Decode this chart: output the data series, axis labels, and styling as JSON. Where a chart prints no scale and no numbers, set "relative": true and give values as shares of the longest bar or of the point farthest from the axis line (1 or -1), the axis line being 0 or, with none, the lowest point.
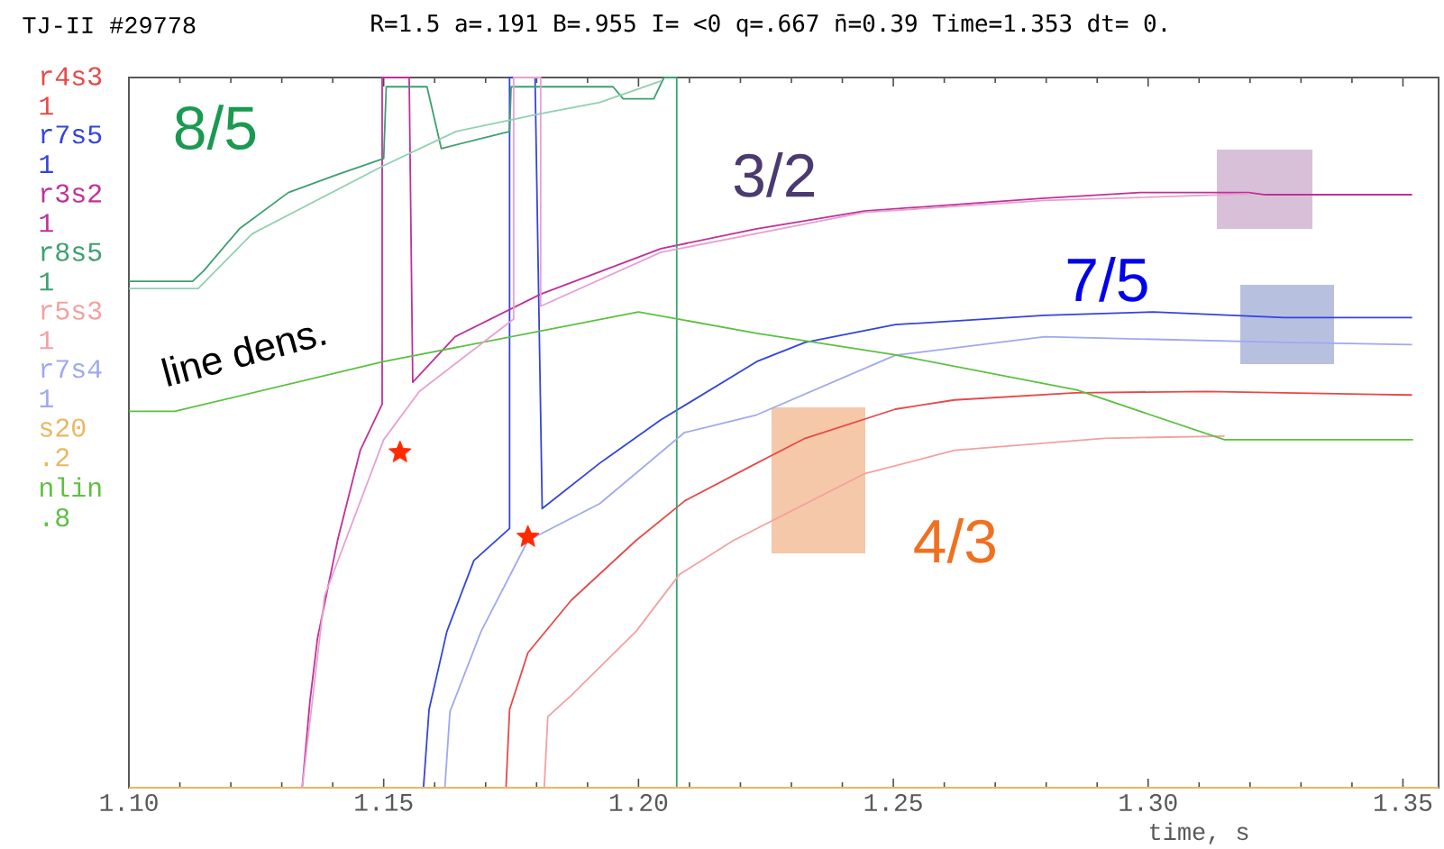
{
  "chart_data": {
    "type": "line",
    "title": "TJ-II #29778",
    "subtitle": "R=1.5  a=.191 B=.955 I= <0  q=.667 n̄=0.39 Time=1.353 dt= 0.",
    "xlabel": "time, s",
    "relative": true,
    "legend": "left",
    "tick_labels": "x",
    "xlim": [
      1.1,
      1.357
    ],
    "xticks": [
      {
        "value": 1.1,
        "label": "1.10"
      },
      {
        "value": 1.15,
        "label": "1.15"
      },
      {
        "value": 1.2,
        "label": "1.20"
      },
      {
        "value": 1.25,
        "label": "1.25"
      },
      {
        "value": 1.3,
        "label": "1.30"
      },
      {
        "value": 1.35,
        "label": "1.35"
      }
    ],
    "annotations": [
      "8/5",
      "3/2",
      "7/5",
      "4/3",
      "line dens."
    ],
    "series": [
      {
        "name": "r4s3 1",
        "color": "#e84848",
        "x": [
          1.174,
          1.1747,
          1.1783,
          1.1868,
          1.1995,
          1.2091,
          1.2232,
          1.2327,
          1.2504,
          1.262,
          1.2857,
          1.3115,
          1.3267,
          1.3518
        ],
        "values": [
          0,
          0.11,
          0.19,
          0.264,
          0.348,
          0.404,
          0.457,
          0.492,
          0.533,
          0.546,
          0.556,
          0.558,
          0.556,
          0.553
        ]
      },
      {
        "name": "r7s5 1",
        "color": "#3344dd",
        "x": [
          1.1578,
          1.1589,
          1.1624,
          1.1677,
          1.1747,
          1.1747,
          1.1797,
          1.1811,
          1.1924,
          1.2044,
          1.2232,
          1.2327,
          1.2504,
          1.2797,
          1.301,
          1.3267,
          1.3518
        ],
        "values": [
          0,
          0.11,
          0.22,
          0.32,
          0.365,
          1.0,
          1.0,
          0.393,
          0.457,
          0.518,
          0.6,
          0.627,
          0.652,
          0.665,
          0.67,
          0.662,
          0.662
        ]
      },
      {
        "name": "r3s2 1",
        "color": "#c0309a",
        "x": [
          1.134,
          1.1355,
          1.137,
          1.141,
          1.1454,
          1.1497,
          1.1497,
          1.155,
          1.1557,
          1.164,
          1.1808,
          1.2044,
          1.2232,
          1.2443,
          1.2797,
          1.2984,
          1.3197,
          1.323,
          1.3518
        ],
        "values": [
          0,
          0.12,
          0.21,
          0.35,
          0.475,
          0.54,
          1.0,
          1.0,
          0.571,
          0.635,
          0.695,
          0.759,
          0.787,
          0.812,
          0.83,
          0.838,
          0.838,
          0.835,
          0.835
        ]
      },
      {
        "name": "r8s5 1",
        "color": "#3ca070",
        "x": [
          1.1,
          1.1125,
          1.1147,
          1.1217,
          1.1313,
          1.1408,
          1.15,
          1.1505,
          1.1585,
          1.1613,
          1.1747,
          1.175,
          1.195,
          1.197,
          1.203,
          1.205,
          1.2075,
          1.2075
        ],
        "values": [
          0.713,
          0.713,
          0.728,
          0.787,
          0.838,
          0.863,
          0.886,
          0.987,
          0.987,
          0.9,
          0.924,
          0.987,
          0.987,
          0.97,
          0.97,
          1.0,
          1.0,
          0
        ]
      },
      {
        "name": "r5s3 1",
        "color": "#f4a0a0",
        "x": [
          1.1815,
          1.1822,
          1.1868,
          1.1995,
          1.208,
          1.2186,
          1.2443,
          1.262,
          1.2914,
          1.315
        ],
        "values": [
          0,
          0.1,
          0.13,
          0.22,
          0.3,
          0.348,
          0.442,
          0.475,
          0.492,
          0.495
        ]
      },
      {
        "name": "r7s4 1",
        "color": "#a0a8f0",
        "x": [
          1.162,
          1.163,
          1.1691,
          1.1783,
          1.1924,
          1.209,
          1.2232,
          1.2504,
          1.2797,
          1.3267,
          1.3518
        ],
        "values": [
          0,
          0.107,
          0.22,
          0.348,
          0.4,
          0.5,
          0.525,
          0.609,
          0.635,
          0.627,
          0.624
        ]
      },
      {
        "name": "s20 .2",
        "color": "#e8b860",
        "x": [
          1.1,
          1.357
        ],
        "values": [
          0,
          0
        ]
      },
      {
        "name": "nlin .8",
        "color": "#5cc040",
        "x": [
          1.1,
          1.109,
          1.15,
          1.2,
          1.223,
          1.25,
          1.286,
          1.315,
          1.352
        ],
        "values": [
          0.53,
          0.53,
          0.6,
          0.67,
          0.64,
          0.61,
          0.56,
          0.49,
          0.49
        ]
      },
      {
        "color": "#e8a0d0",
        "x": [
          1.134,
          1.1384,
          1.15,
          1.157,
          1.1755,
          1.1755,
          1.1808,
          1.1808,
          1.2044,
          1.2443,
          1.2797,
          1.32
        ],
        "values": [
          0,
          0.27,
          0.49,
          0.558,
          0.66,
          1.0,
          1.0,
          0.678,
          0.754,
          0.81,
          0.827,
          0.836
        ]
      },
      {
        "color": "#90d0b0",
        "x": [
          1.1,
          1.1136,
          1.1242,
          1.15,
          1.1642,
          1.1808,
          1.1924,
          1.2044
        ],
        "values": [
          0.703,
          0.703,
          0.78,
          0.876,
          0.924,
          0.949,
          0.965,
          0.995
        ]
      },
      {
        "type": "scatter",
        "color": "#ff2a00",
        "marker": "star",
        "x": [
          1.1532,
          1.1783
        ],
        "values": [
          0.472,
          0.353
        ]
      }
    ]
  }
}
